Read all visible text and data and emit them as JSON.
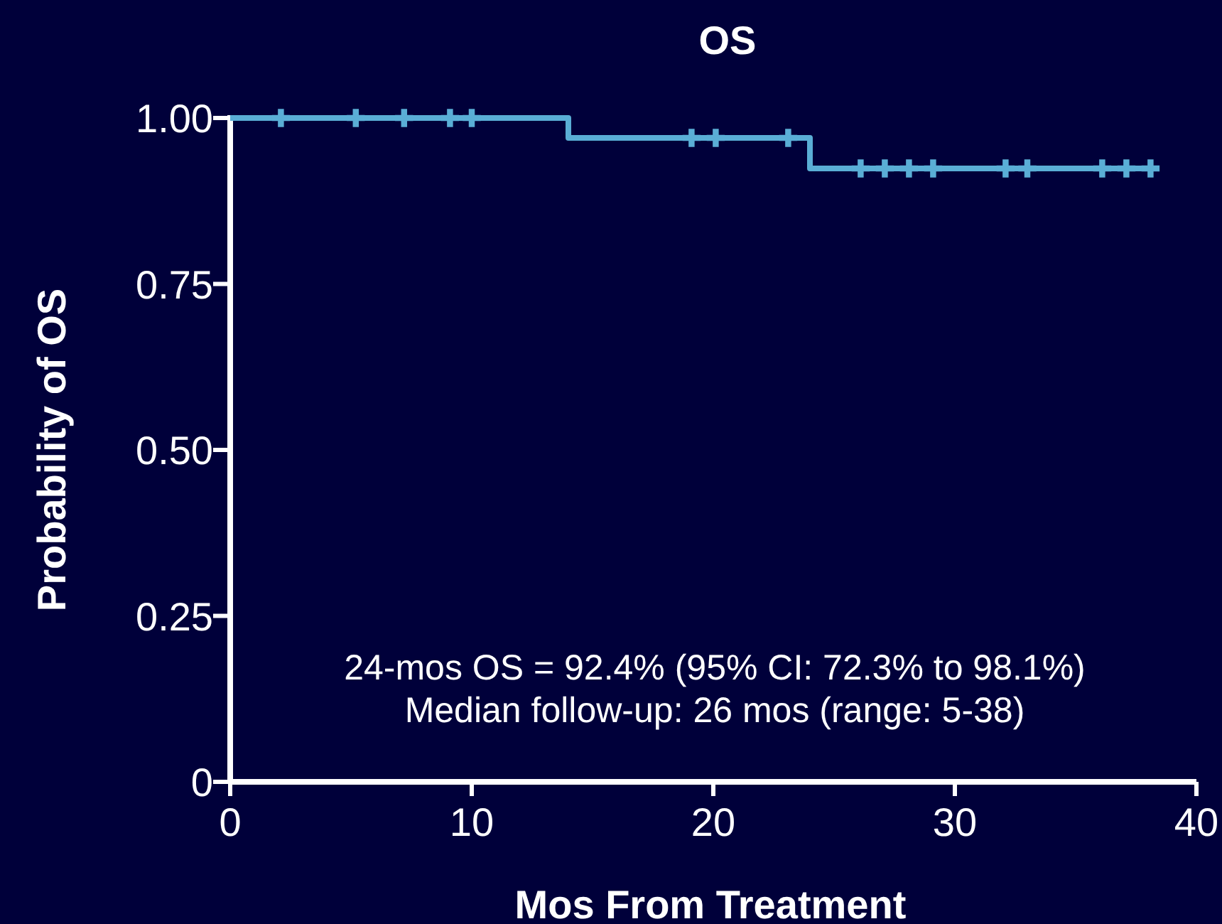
{
  "chart_data": {
    "type": "step",
    "title": "OS",
    "xlabel": "Mos From Treatment",
    "ylabel": "Probability of OS",
    "xlim": [
      0,
      40
    ],
    "xticks": [
      0,
      10,
      20,
      30,
      40
    ],
    "ylim": [
      0,
      1
    ],
    "yticks": [
      {
        "value": 0,
        "label": "0"
      },
      0.25,
      {
        "value": 0.5,
        "label": "0.50"
      },
      {
        "value": 0.75,
        "label": "0.75"
      },
      {
        "value": 1,
        "label": "1.00"
      }
    ],
    "grid": false,
    "series": [
      {
        "color": "#5aaed6",
        "x": [
          0,
          14,
          24,
          38
        ],
        "values": [
          1,
          0.97,
          0.924,
          0.924
        ]
      },
      {
        "type": "scatter",
        "marker": "cross",
        "color": "#5aaed6",
        "x": [
          2.1,
          5.2,
          7.2,
          9.1,
          10.0,
          19.1,
          20.1,
          23.1,
          26.1,
          27.1,
          28.1,
          29.1,
          32.1,
          33.0,
          36.1,
          37.1,
          38.1
        ],
        "values": [
          1,
          1,
          1,
          1,
          1,
          0.97,
          0.97,
          0.97,
          0.924,
          0.924,
          0.924,
          0.924,
          0.924,
          0.924,
          0.924,
          0.924,
          0.924
        ]
      }
    ],
    "annotations": [
      "24-mos OS = 92.4% (95% CI: 72.3% to 98.1%)",
      "Median follow-up: 26 mos (range: 5-38)"
    ]
  }
}
